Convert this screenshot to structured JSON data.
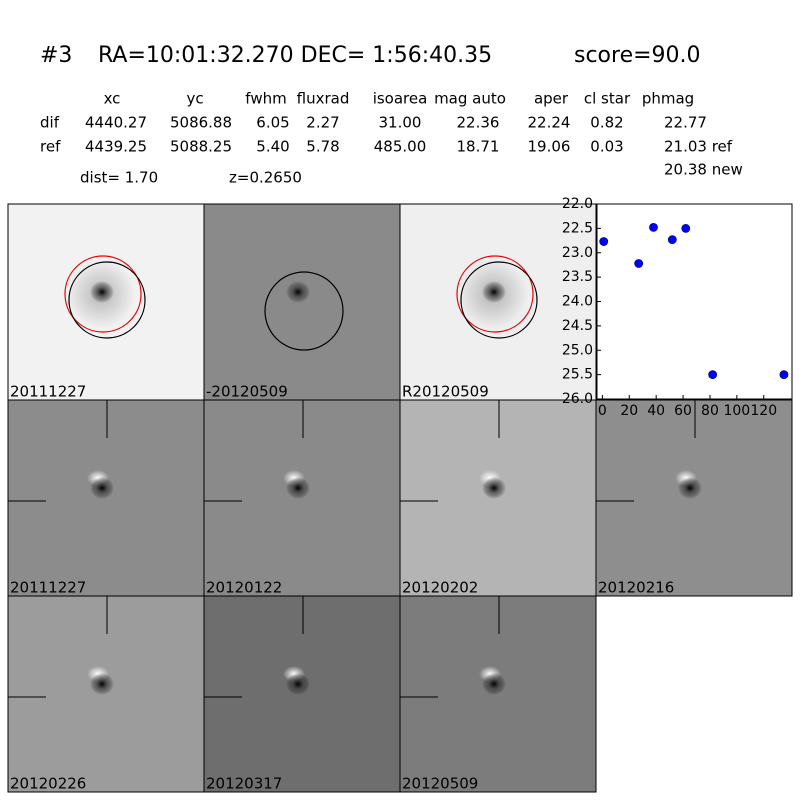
{
  "header": {
    "id": "#3",
    "coords": "RA=10:01:32.270 DEC= 1:56:40.35",
    "score": "score=90.0"
  },
  "table": {
    "columns": [
      "xc",
      "yc",
      "fwhm",
      "fluxrad",
      "isoarea",
      "mag auto",
      "aper",
      "cl star",
      "phmag"
    ],
    "rows": [
      [
        "dif",
        "4440.27",
        "5086.88",
        "6.05",
        "2.27",
        "31.00",
        "22.36",
        "22.24",
        "0.82",
        "22.77"
      ],
      [
        "ref",
        "4439.25",
        "5088.25",
        "5.40",
        "5.78",
        "485.00",
        "18.71",
        "19.06",
        "0.03",
        "21.03 ref"
      ]
    ]
  },
  "dist": "dist=  1.70",
  "z": "z=0.2650",
  "phmag_new": "20.38 new",
  "panels": [
    {
      "label": "20111227"
    },
    {
      "label": "-20120509"
    },
    {
      "label": "R20120509"
    },
    {
      "label": "20111227",
      "label_color": "#ff0000"
    },
    {
      "label": "20120122"
    },
    {
      "label": "20120202"
    },
    {
      "label": "20120216"
    },
    {
      "label": "20120226"
    },
    {
      "label": "20120317"
    },
    {
      "label": "20120509"
    }
  ],
  "chart_data": {
    "type": "scatter",
    "x": [
      1,
      27,
      38,
      52,
      62,
      82,
      135
    ],
    "values": [
      22.77,
      23.22,
      22.48,
      22.73,
      22.5,
      25.5,
      25.5
    ],
    "color": "#0000ff",
    "xlim": [
      -4,
      141
    ],
    "ylim": [
      26.0,
      22.0
    ],
    "xticks": [
      0,
      20,
      40,
      60,
      80,
      100,
      120
    ],
    "yticks": [
      {
        "value": 22,
        "label": "22.0"
      },
      {
        "value": 22.5,
        "label": "22.5"
      },
      {
        "value": 23,
        "label": "23.0"
      },
      {
        "value": 23.5,
        "label": "23.5"
      },
      {
        "value": 24,
        "label": "24.0"
      },
      {
        "value": 24.5,
        "label": "24.5"
      },
      {
        "value": 25,
        "label": "25.0"
      },
      {
        "value": 25.5,
        "label": "25.5"
      },
      {
        "value": 26,
        "label": "26.0"
      }
    ]
  }
}
